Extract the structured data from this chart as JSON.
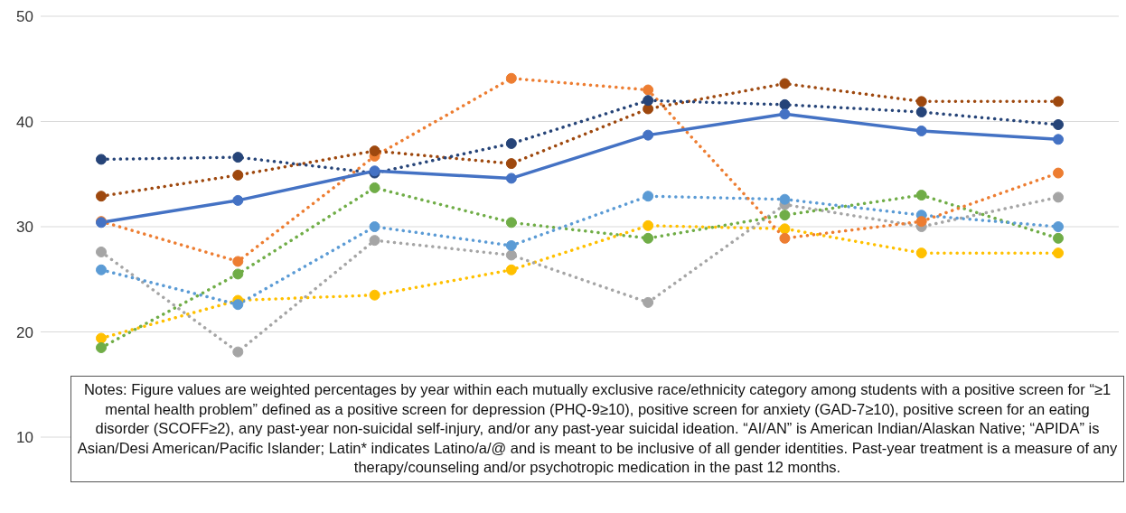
{
  "chart_data": {
    "type": "line",
    "categories": [
      null,
      null,
      null,
      null,
      null,
      null,
      null,
      null
    ],
    "series": [
      {
        "color": "#4472c4",
        "line_style": "solid",
        "values": [
          30.4,
          32.5,
          35.3,
          34.6,
          38.7,
          40.7,
          39.1,
          38.3
        ]
      },
      {
        "color": "#264478",
        "line_style": "dotted",
        "values": [
          36.4,
          36.6,
          35.1,
          37.9,
          42.0,
          41.6,
          40.9,
          39.7
        ]
      },
      {
        "color": "#9e480e",
        "line_style": "dotted",
        "values": [
          32.9,
          34.9,
          37.2,
          36.0,
          41.2,
          43.6,
          41.9,
          41.9
        ]
      },
      {
        "color": "#ed7d31",
        "line_style": "dotted",
        "values": [
          30.5,
          26.7,
          36.7,
          44.1,
          43.0,
          28.9,
          30.5,
          35.1
        ]
      },
      {
        "color": "#5b9bd5",
        "line_style": "dotted",
        "values": [
          25.9,
          22.6,
          30.0,
          28.2,
          32.9,
          32.6,
          31.1,
          30.0
        ]
      },
      {
        "color": "#70ad47",
        "line_style": "dotted",
        "values": [
          18.5,
          25.5,
          33.7,
          30.4,
          28.9,
          31.1,
          33.0,
          28.9
        ]
      },
      {
        "color": "#a5a5a5",
        "line_style": "dotted",
        "values": [
          27.6,
          18.1,
          28.7,
          27.3,
          22.8,
          32.1,
          30.0,
          32.8
        ]
      },
      {
        "color": "#ffc000",
        "line_style": "dotted",
        "values": [
          19.4,
          23.0,
          23.5,
          25.9,
          30.1,
          29.8,
          27.5,
          27.5
        ]
      }
    ],
    "ylim": [
      10,
      50
    ],
    "yticks": [
      10,
      20,
      30,
      40,
      50
    ],
    "grid": "y",
    "marker": "circle",
    "tick_labels": "y",
    "legend": false,
    "annotations": [
      "Notes: Figure values are weighted percentages by year within each mutually exclusive race/ethnicity category among students with a positive screen for “≥1 mental health problem” defined as a positive screen for depression (PHQ-9≥10), positive screen for anxiety (GAD-7≥10), positive screen for an eating disorder (SCOFF≥2), any past-year non-suicidal self-injury, and/or any past-year suicidal ideation. “AI/AN” is American Indian/Alaskan Native; “APIDA” is Asian/Desi American/Pacific Islander; Latin* indicates Latino/a/@ and is meant to be inclusive of all gender identities. Past-year treatment is a measure of any therapy/counseling and/or psychotropic medication in the past 12 months."
    ]
  }
}
